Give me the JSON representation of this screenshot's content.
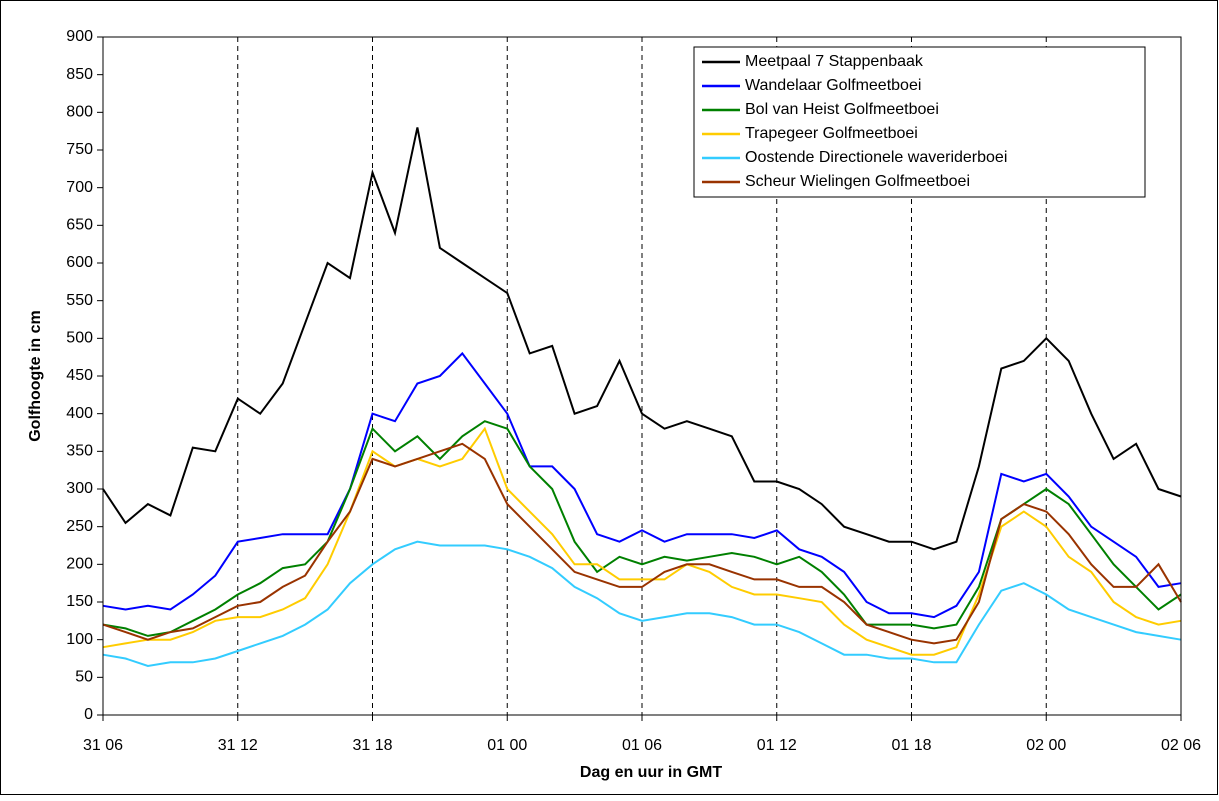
{
  "chart_data": {
    "type": "line",
    "xlabel": "Dag en uur in GMT",
    "ylabel": "Golfhoogte in cm",
    "x": [
      0,
      1,
      2,
      3,
      4,
      5,
      6,
      7,
      8,
      9,
      10,
      11,
      12,
      13,
      14,
      15,
      16,
      17,
      18,
      19,
      20,
      21,
      22,
      23,
      24,
      25,
      26,
      27,
      28,
      29,
      30,
      31,
      32,
      33,
      34,
      35,
      36,
      37,
      38,
      39,
      40,
      41,
      42,
      43,
      44,
      45,
      46,
      47,
      48
    ],
    "xlim": [
      0,
      48
    ],
    "xticks": [
      {
        "value": 0,
        "label": "31 06"
      },
      {
        "value": 6,
        "label": "31 12"
      },
      {
        "value": 12,
        "label": "31 18"
      },
      {
        "value": 18,
        "label": "01 00"
      },
      {
        "value": 24,
        "label": "01 06"
      },
      {
        "value": 30,
        "label": "01 12"
      },
      {
        "value": 36,
        "label": "01 18"
      },
      {
        "value": 42,
        "label": "02 00"
      },
      {
        "value": 48,
        "label": "02 06"
      }
    ],
    "ylim": [
      0,
      900
    ],
    "yticks": [
      0,
      50,
      100,
      150,
      200,
      250,
      300,
      350,
      400,
      450,
      500,
      550,
      600,
      650,
      700,
      750,
      800,
      850,
      900
    ],
    "xgrid": true,
    "legend": "top-right",
    "series": [
      {
        "name": "Meetpaal 7 Stappenbaak",
        "color": "#000000",
        "values": [
          300,
          255,
          280,
          265,
          355,
          350,
          420,
          400,
          440,
          520,
          600,
          580,
          720,
          640,
          780,
          620,
          600,
          580,
          560,
          480,
          490,
          400,
          410,
          470,
          400,
          380,
          390,
          380,
          370,
          310,
          310,
          300,
          280,
          250,
          240,
          230,
          230,
          220,
          230,
          330,
          460,
          470,
          500,
          470,
          400,
          340,
          360,
          300,
          290
        ]
      },
      {
        "name": "Wandelaar Golfmeetboei",
        "color": "#0000ff",
        "values": [
          145,
          140,
          145,
          140,
          160,
          185,
          230,
          235,
          240,
          240,
          240,
          300,
          400,
          390,
          440,
          450,
          480,
          440,
          400,
          330,
          330,
          300,
          240,
          230,
          245,
          230,
          240,
          240,
          240,
          235,
          245,
          220,
          210,
          190,
          150,
          135,
          135,
          130,
          145,
          190,
          320,
          310,
          320,
          290,
          250,
          230,
          210,
          170,
          175
        ]
      },
      {
        "name": "Bol van Heist Golfmeetboei",
        "color": "#008000",
        "values": [
          120,
          115,
          105,
          110,
          125,
          140,
          160,
          175,
          195,
          200,
          230,
          300,
          380,
          350,
          370,
          340,
          370,
          390,
          380,
          330,
          300,
          230,
          190,
          210,
          200,
          210,
          205,
          210,
          215,
          210,
          200,
          210,
          190,
          160,
          120,
          120,
          120,
          115,
          120,
          170,
          260,
          280,
          300,
          280,
          240,
          200,
          170,
          140,
          160
        ]
      },
      {
        "name": "Trapegeer Golfmeetboei",
        "color": "#ffcc00",
        "values": [
          90,
          95,
          100,
          100,
          110,
          125,
          130,
          130,
          140,
          155,
          200,
          270,
          350,
          330,
          340,
          330,
          340,
          380,
          300,
          270,
          240,
          200,
          200,
          180,
          180,
          180,
          200,
          190,
          170,
          160,
          160,
          155,
          150,
          120,
          100,
          90,
          80,
          80,
          90,
          160,
          250,
          270,
          250,
          210,
          190,
          150,
          130,
          120,
          125
        ]
      },
      {
        "name": "Oostende Directionele waveriderboei",
        "color": "#33ccff",
        "values": [
          80,
          75,
          65,
          70,
          70,
          75,
          85,
          95,
          105,
          120,
          140,
          175,
          200,
          220,
          230,
          225,
          225,
          225,
          220,
          210,
          195,
          170,
          155,
          135,
          125,
          130,
          135,
          135,
          130,
          120,
          120,
          110,
          95,
          80,
          80,
          75,
          75,
          70,
          70,
          120,
          165,
          175,
          160,
          140,
          130,
          120,
          110,
          105,
          100
        ]
      },
      {
        "name": "Scheur Wielingen Golfmeetboei",
        "color": "#993300",
        "values": [
          120,
          110,
          100,
          110,
          115,
          130,
          145,
          150,
          170,
          185,
          230,
          270,
          340,
          330,
          340,
          350,
          360,
          340,
          280,
          250,
          220,
          190,
          180,
          170,
          170,
          190,
          200,
          200,
          190,
          180,
          180,
          170,
          170,
          150,
          120,
          110,
          100,
          95,
          100,
          150,
          260,
          280,
          270,
          240,
          200,
          170,
          170,
          200,
          150
        ]
      }
    ]
  }
}
